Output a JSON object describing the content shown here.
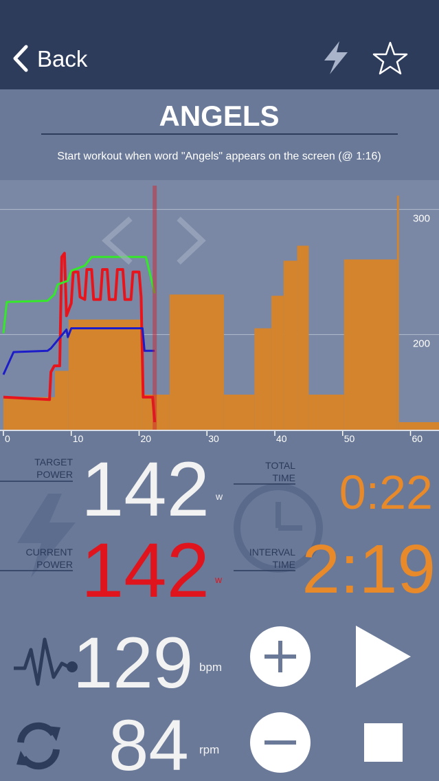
{
  "header": {
    "back": "Back"
  },
  "title": "ANGELS",
  "subtitle": "Start workout when word \"Angels\" appears on the screen (@ 1:16)",
  "chart": {
    "type": "line",
    "xlim": [
      -0.5,
      64.2
    ],
    "ylim": [
      124,
      319
    ],
    "xticks": [
      0,
      10,
      20,
      30,
      40,
      50,
      60
    ],
    "yticks": [
      200,
      300
    ],
    "grid": true,
    "cursor_x": 22.3,
    "profile": {
      "color": "#d4842c",
      "bins": [
        0,
        7.6,
        9.6,
        20.5,
        24.5,
        32.5,
        37,
        39.5,
        41.3,
        43.3,
        45,
        50.2,
        58,
        58.3,
        64.2
      ],
      "values": [
        150,
        171,
        212,
        152,
        232,
        152,
        205,
        231,
        259,
        271,
        152,
        260,
        311,
        130
      ]
    },
    "series": [
      {
        "color": "#e8141c",
        "x": [
          0,
          6.8,
          7,
          7.5,
          8.3,
          8.6,
          9,
          9.3,
          10,
          10.3,
          11,
          11.3,
          12,
          12.3,
          13,
          13.3,
          14.3,
          14.6,
          15.3,
          15.6,
          16.5,
          16.8,
          17.6,
          17.9,
          18.8,
          19.1,
          20,
          20.3,
          20.6,
          22,
          22.3
        ],
        "values": [
          150,
          148,
          170,
          175,
          175,
          262,
          265,
          215,
          225,
          250,
          250,
          230,
          228,
          252,
          252,
          228,
          228,
          252,
          252,
          228,
          228,
          252,
          252,
          228,
          228,
          250,
          250,
          230,
          150,
          150,
          130
        ]
      },
      {
        "color": "#35e82a",
        "x": [
          0,
          0.5,
          6.5,
          7.5,
          8,
          9.5,
          10,
          12,
          13,
          21,
          22.3
        ],
        "values": [
          201,
          226,
          227,
          232,
          240,
          243,
          251,
          255,
          262,
          262,
          233
        ]
      },
      {
        "color": "#1c1cc8",
        "x": [
          0,
          1.5,
          6.5,
          7,
          9.3,
          9.5,
          10,
          20.5,
          20.8,
          22.3
        ],
        "values": [
          168,
          186,
          187,
          189,
          204,
          198,
          205,
          205,
          187,
          187
        ]
      }
    ]
  },
  "metrics": {
    "target_power": {
      "label_lines": [
        "TARGET",
        "POWER"
      ],
      "value": "142",
      "unit": "w"
    },
    "total_time": {
      "label_lines": [
        "TOTAL",
        "TIME"
      ],
      "value": "0:22"
    },
    "current_power": {
      "label_lines": [
        "CURRENT",
        "POWER"
      ],
      "value": "142",
      "unit": "w"
    },
    "interval_time": {
      "label_lines": [
        "INTERVAL",
        "TIME"
      ],
      "value": "2:19"
    },
    "heart_rate": {
      "value": "129",
      "unit": "bpm"
    },
    "cadence": {
      "value": "84",
      "unit": "rpm"
    }
  }
}
